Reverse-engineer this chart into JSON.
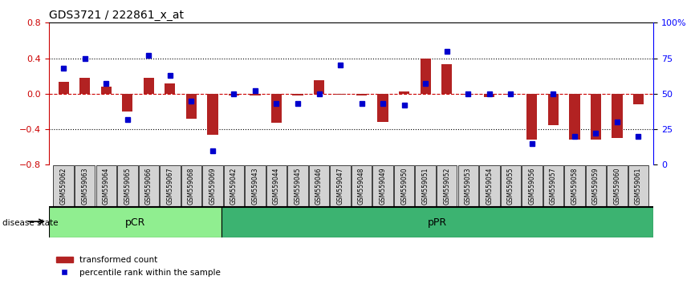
{
  "title": "GDS3721 / 222861_x_at",
  "samples": [
    "GSM559062",
    "GSM559063",
    "GSM559064",
    "GSM559065",
    "GSM559066",
    "GSM559067",
    "GSM559068",
    "GSM559069",
    "GSM559042",
    "GSM559043",
    "GSM559044",
    "GSM559045",
    "GSM559046",
    "GSM559047",
    "GSM559048",
    "GSM559049",
    "GSM559050",
    "GSM559051",
    "GSM559052",
    "GSM559053",
    "GSM559054",
    "GSM559055",
    "GSM559056",
    "GSM559057",
    "GSM559058",
    "GSM559059",
    "GSM559060",
    "GSM559061"
  ],
  "red_bars": [
    0.13,
    0.18,
    0.08,
    -0.2,
    0.18,
    0.12,
    -0.28,
    -0.46,
    -0.02,
    -0.02,
    -0.33,
    -0.02,
    0.15,
    -0.01,
    -0.02,
    -0.32,
    0.03,
    0.4,
    0.33,
    -0.01,
    -0.04,
    -0.01,
    -0.52,
    -0.35,
    -0.52,
    -0.52,
    -0.5,
    -0.12
  ],
  "blue_dots_pct": [
    68,
    75,
    57,
    32,
    77,
    63,
    45,
    10,
    50,
    52,
    43,
    43,
    50,
    70,
    43,
    43,
    42,
    57,
    80,
    50,
    50,
    50,
    15,
    50,
    20,
    22,
    30,
    20
  ],
  "pCR_count": 8,
  "pPR_count": 20,
  "ylim": [
    -0.8,
    0.8
  ],
  "yticks_left": [
    -0.8,
    -0.4,
    0.0,
    0.4,
    0.8
  ],
  "yticks_right": [
    0,
    25,
    50,
    75,
    100
  ],
  "ytick_labels_right": [
    "0",
    "25",
    "50",
    "75",
    "100%"
  ],
  "bar_color": "#b22222",
  "dot_color": "#0000cd",
  "pCR_color": "#90ee90",
  "pPR_color": "#3cb371",
  "label_bg_color": "#d3d3d3",
  "hline_color": "#cc0000",
  "disease_state_label": "disease state",
  "pCR_label": "pCR",
  "pPR_label": "pPR",
  "legend_red": "transformed count",
  "legend_blue": "percentile rank within the sample"
}
